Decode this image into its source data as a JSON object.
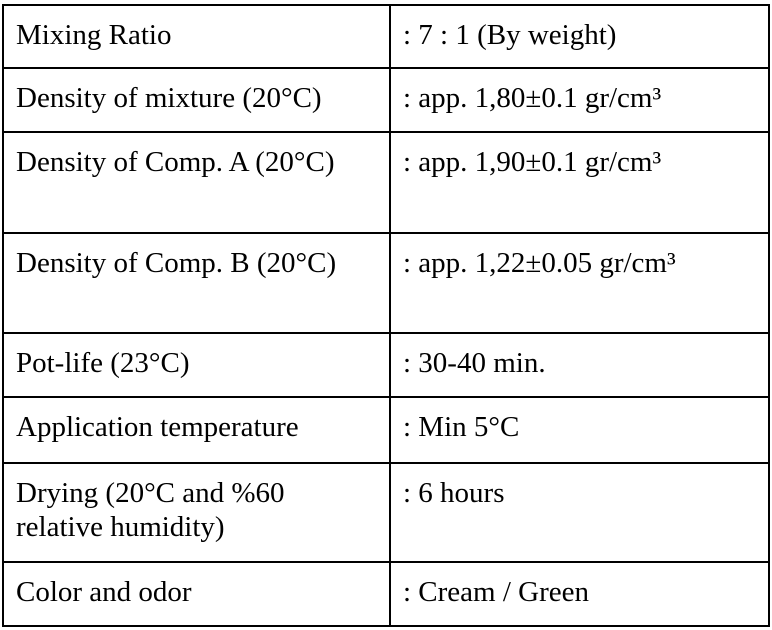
{
  "rows": [
    {
      "label": "Mixing Ratio",
      "value": ": 7 : 1 (By weight)"
    },
    {
      "label": "Density of mixture (20°C)",
      "value": ": app. 1,80±0.1 gr/cm³"
    },
    {
      "label": "Density of Comp. A (20°C)",
      "value": ": app. 1,90±0.1 gr/cm³"
    },
    {
      "label": "Density of Comp. B (20°C)",
      "value": ": app. 1,22±0.05 gr/cm³"
    },
    {
      "label": "Pot-life (23°C)",
      "value": ": 30-40 min."
    },
    {
      "label": "Application temperature",
      "value": ": Min 5°C"
    },
    {
      "label": "Drying (20°C and %60 relative humidity)",
      "value": ": 6 hours"
    },
    {
      "label": "Color and odor",
      "value": ": Cream / Green"
    }
  ]
}
